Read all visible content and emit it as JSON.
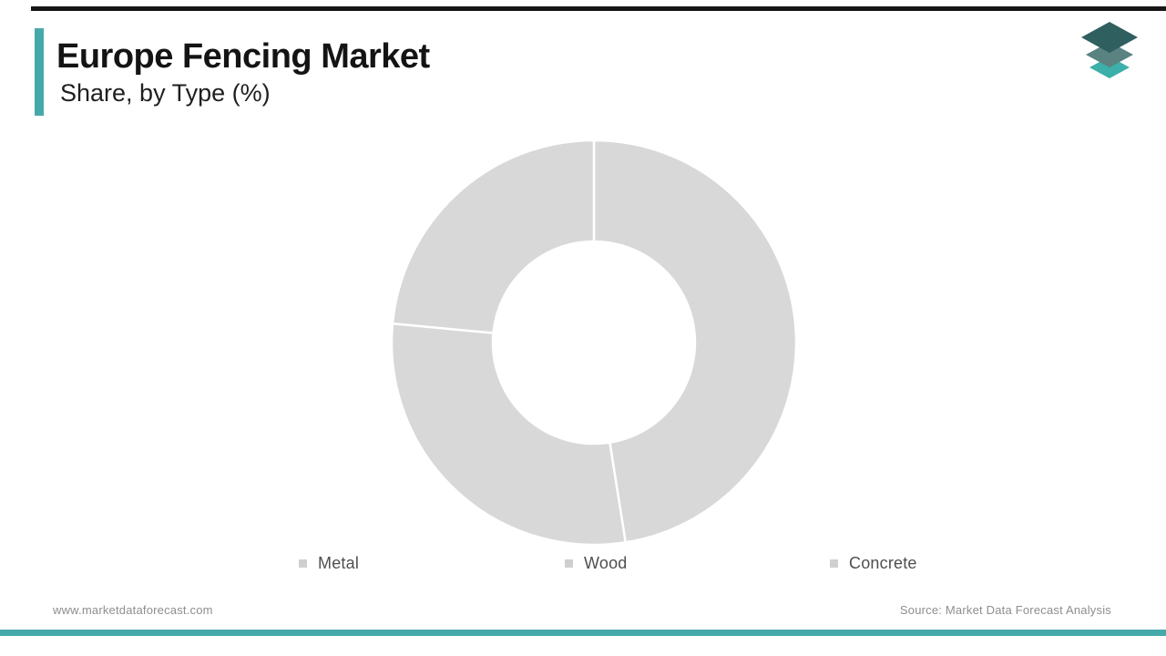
{
  "header": {
    "title": "Europe Fencing Market",
    "subtitle": "Share, by Type (%)"
  },
  "logo": {
    "name": "market-data-forecast-logo",
    "colors": {
      "top_layer": "#2f5f5e",
      "middle_layer": "#5a8280",
      "bottom_layer": "#3cafaa"
    }
  },
  "decor": {
    "top_rule_color": "#161616",
    "bottom_rule_color": "#46a9a9",
    "accent_bar_color": "#46a9a9"
  },
  "chart_data": {
    "type": "pie",
    "subtype": "donut",
    "title": "Europe Fencing Market Share, by Type (%)",
    "categories": [
      "Metal",
      "Wood",
      "Concrete"
    ],
    "values": [
      47.5,
      29.0,
      23.5
    ],
    "unit": "%",
    "start_angle_deg": 0,
    "direction": "clockwise",
    "inner_radius_ratio": 0.5,
    "slice_color": "#d8d8d8",
    "divider_color": "#ffffff",
    "data_labels": false,
    "legend_position": "bottom"
  },
  "legend": {
    "marker_color": "#cfcfcf",
    "items": [
      {
        "label": "Metal"
      },
      {
        "label": "Wood"
      },
      {
        "label": "Concrete"
      }
    ]
  },
  "footer": {
    "left": "www.marketdataforecast.com",
    "right": "Source: Market Data Forecast Analysis"
  }
}
